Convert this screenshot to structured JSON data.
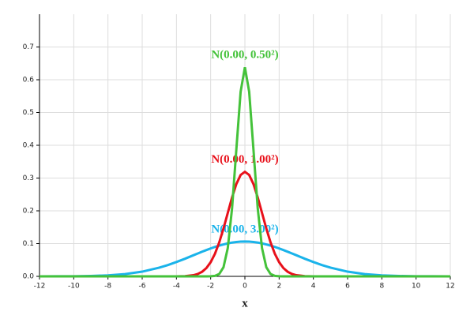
{
  "chart_data": {
    "type": "line",
    "x_label": "x",
    "x": [
      -12,
      -11,
      -10,
      -9,
      -8,
      -7,
      -6,
      -5,
      -4.5,
      -4,
      -3.5,
      -3,
      -2.75,
      -2.5,
      -2.25,
      -2,
      -1.75,
      -1.5,
      -1.25,
      -1,
      -0.75,
      -0.5,
      -0.25,
      0,
      0.25,
      0.5,
      0.75,
      1,
      1.25,
      1.5,
      1.75,
      2,
      2.25,
      2.5,
      2.75,
      3,
      3.5,
      4,
      4.5,
      5,
      6,
      7,
      8,
      9,
      10,
      11,
      12
    ],
    "series": [
      {
        "name": "N(0.00, 3.00²)",
        "color": "#1ab3ea",
        "values": [
          0,
          0.0002,
          0.0004,
          0.0012,
          0.003,
          0.007,
          0.0144,
          0.0266,
          0.0346,
          0.0438,
          0.0538,
          0.0646,
          0.0699,
          0.0752,
          0.0803,
          0.0852,
          0.0898,
          0.0939,
          0.0975,
          0.1006,
          0.1031,
          0.1049,
          0.106,
          0.1064,
          0.106,
          0.1049,
          0.1031,
          0.1006,
          0.0975,
          0.0939,
          0.0898,
          0.0852,
          0.0803,
          0.0752,
          0.0699,
          0.0646,
          0.0538,
          0.0438,
          0.0346,
          0.0266,
          0.0144,
          0.007,
          0.003,
          0.0012,
          0.0004,
          0.0002,
          0
        ]
      },
      {
        "name": "N(0.00, 1.00²)",
        "color": "#e8101a",
        "values": [
          0,
          0,
          0,
          0,
          0,
          0,
          0,
          0,
          0,
          0.0001,
          0.0007,
          0.0035,
          0.0073,
          0.014,
          0.0254,
          0.0432,
          0.069,
          0.1036,
          0.1461,
          0.1936,
          0.2409,
          0.2817,
          0.3094,
          0.3191,
          0.3094,
          0.2817,
          0.2409,
          0.1936,
          0.1461,
          0.1036,
          0.069,
          0.0432,
          0.0254,
          0.014,
          0.0073,
          0.0035,
          0.0007,
          0.0001,
          0,
          0,
          0,
          0,
          0,
          0,
          0,
          0,
          0
        ]
      },
      {
        "name": "N(0.00, 0.50²)",
        "color": "#44c23a",
        "values": [
          0,
          0,
          0,
          0,
          0,
          0,
          0,
          0,
          0,
          0,
          0,
          0,
          0,
          0,
          0,
          0.0002,
          0.0014,
          0.0071,
          0.028,
          0.0864,
          0.2073,
          0.3871,
          0.5633,
          0.638,
          0.5633,
          0.3871,
          0.2073,
          0.0864,
          0.028,
          0.0071,
          0.0014,
          0.0002,
          0,
          0,
          0,
          0,
          0,
          0,
          0,
          0,
          0,
          0,
          0,
          0,
          0,
          0,
          0
        ]
      }
    ],
    "xlim": [
      -12,
      12
    ],
    "xticks": [
      -12,
      -10,
      -8,
      -6,
      -4,
      -2,
      0,
      2,
      4,
      6,
      8,
      10,
      12
    ],
    "ylim": [
      0,
      0.8
    ],
    "yticks": [
      {
        "value": 0,
        "label": "0.0"
      },
      0.1,
      0.2,
      0.3,
      0.4,
      0.5,
      0.6,
      0.7
    ],
    "grid": true
  }
}
